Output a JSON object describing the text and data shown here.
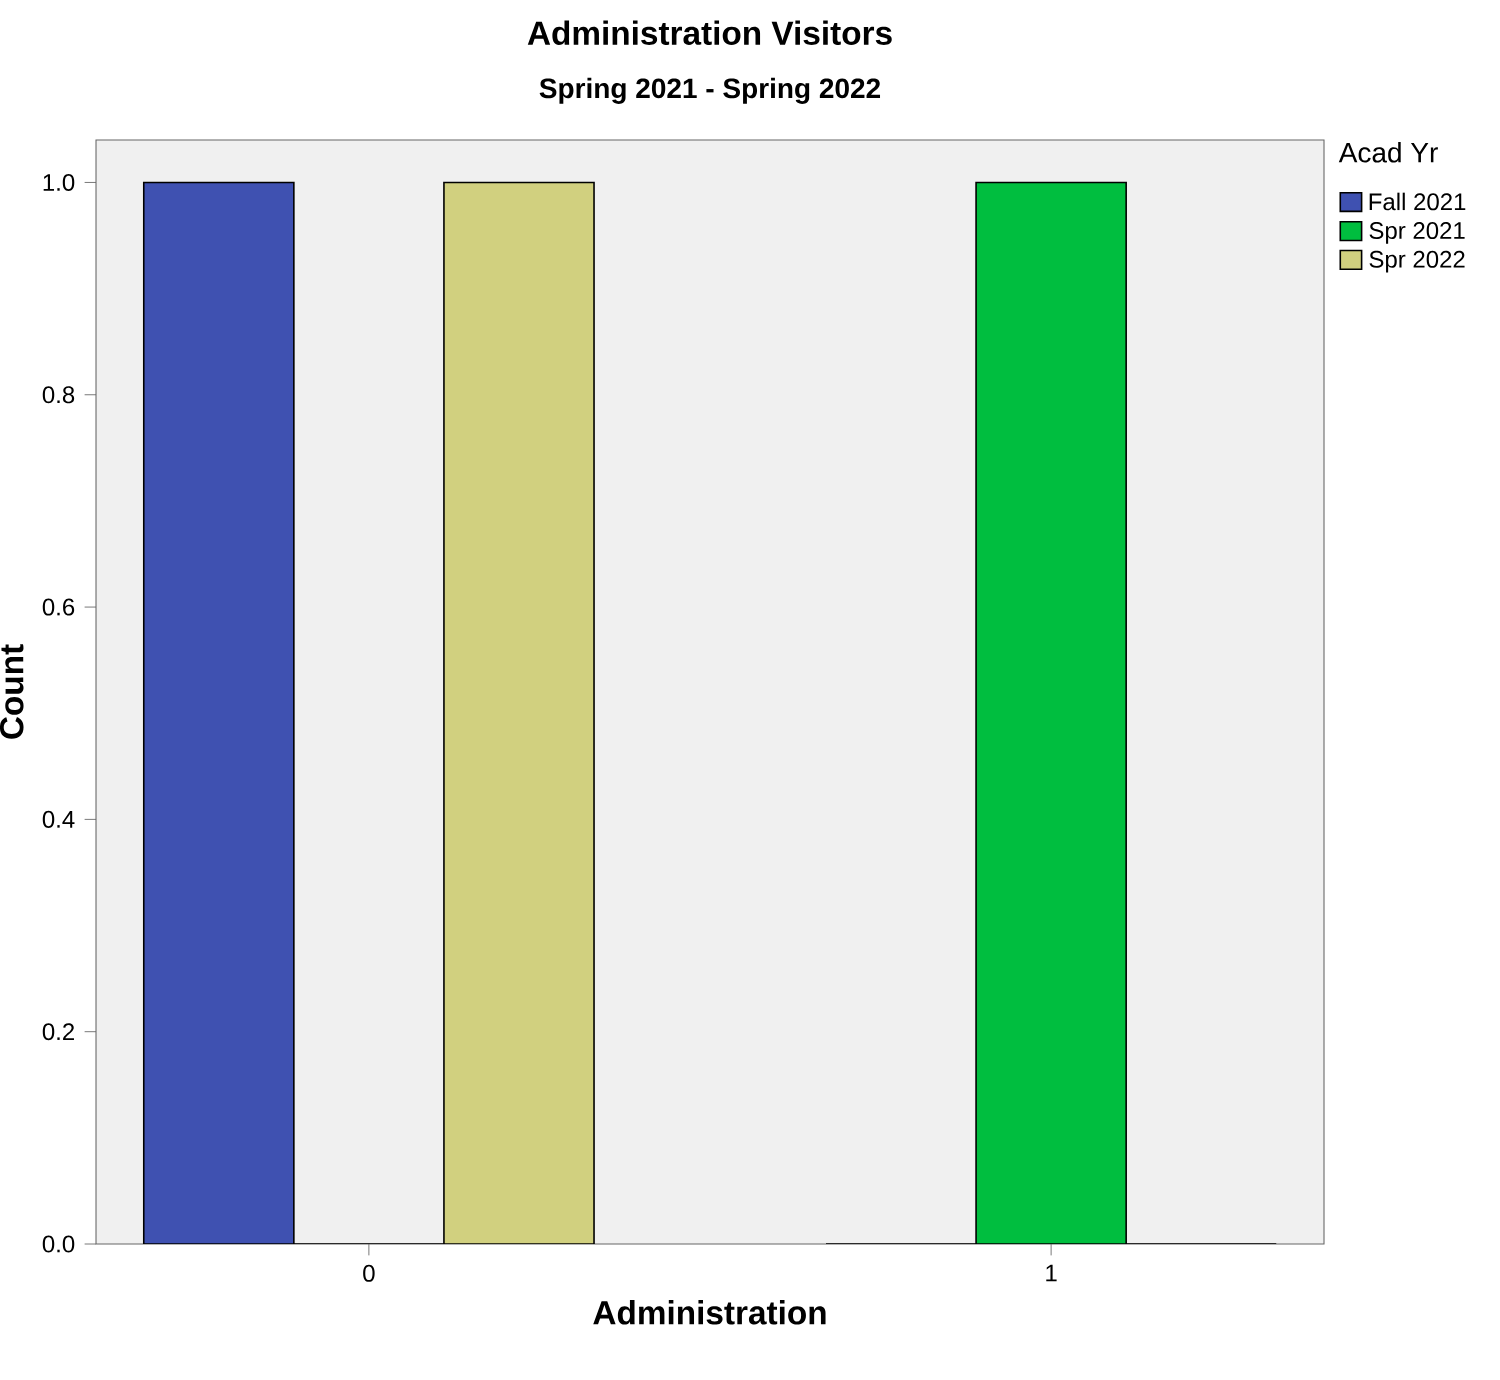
{
  "chart_data": {
    "type": "bar",
    "title": "Administration Visitors",
    "subtitle": "Spring 2021 -  Spring 2022",
    "xlabel": "Administration",
    "ylabel": "Count",
    "legend_title": "Acad Yr",
    "legend": "top right",
    "categories": [
      "0",
      "1"
    ],
    "series": [
      {
        "name": "Fall 2021",
        "color": "#3f51b1",
        "values": [
          1,
          0
        ]
      },
      {
        "name": "Spr 2021",
        "color": "#00be3f",
        "values": [
          0,
          1
        ]
      },
      {
        "name": "Spr 2022",
        "color": "#d1d07f",
        "values": [
          1,
          0
        ]
      }
    ],
    "ylim": [
      0,
      1.04
    ],
    "yticks": [
      {
        "value": 0,
        "label": "0.0"
      },
      {
        "value": 0.2,
        "label": "0.2"
      },
      {
        "value": 0.4,
        "label": "0.4"
      },
      {
        "value": 0.6,
        "label": "0.6"
      },
      {
        "value": 0.8,
        "label": "0.8"
      },
      {
        "value": 1,
        "label": "1.0"
      }
    ]
  }
}
